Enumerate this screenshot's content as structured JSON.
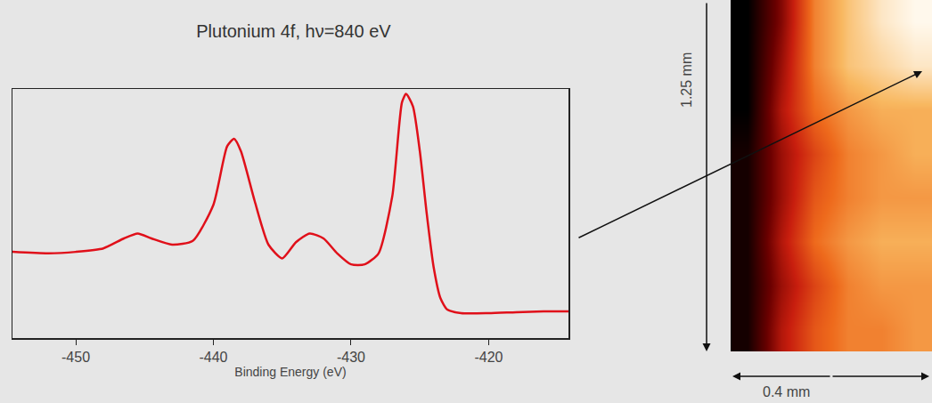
{
  "chart_data": [
    {
      "type": "line",
      "title": "Plutonium 4f, hν=840 eV",
      "x_label": "Binding Energy (eV)",
      "x": [
        -454.6,
        -452,
        -450,
        -448,
        -446.5,
        -445.5,
        -444.5,
        -443,
        -441.5,
        -440,
        -439,
        -438.5,
        -438,
        -437,
        -436,
        -435,
        -434,
        -433,
        -432,
        -431,
        -430,
        -429,
        -428,
        -427,
        -426.3,
        -426,
        -425.5,
        -425,
        -424.5,
        -424,
        -423.5,
        -423,
        -422,
        -420,
        -418,
        -416,
        -414.2
      ],
      "values": [
        34.6,
        34,
        34.6,
        36,
        40,
        42,
        40,
        37.5,
        39,
        53.5,
        77,
        80,
        75,
        55,
        37.5,
        32,
        38.5,
        42,
        40,
        34,
        29.6,
        29.6,
        34,
        57,
        94.6,
        98,
        93,
        75,
        50,
        28.6,
        16,
        11.4,
        10,
        10,
        10.4,
        10.7,
        10.7
      ],
      "color": "#e0101a",
      "xlim": [
        -454.6,
        -414.2
      ],
      "xticks": [
        -450,
        -440,
        -430,
        -420
      ],
      "ylim": [
        0,
        100
      ],
      "tick_labels": "x",
      "grid": false
    },
    {
      "type": "heatmap",
      "cells": [
        [
          0.0,
          0.3,
          0.7,
          0.85,
          0.95,
          1.0
        ],
        [
          0.0,
          0.35,
          0.7,
          0.85,
          0.9,
          0.95
        ],
        [
          0.0,
          0.4,
          0.65,
          0.75,
          0.8,
          0.8
        ],
        [
          0.05,
          0.35,
          0.55,
          0.7,
          0.75,
          0.8
        ],
        [
          0.05,
          0.35,
          0.6,
          0.7,
          0.75,
          0.75
        ],
        [
          0.05,
          0.4,
          0.65,
          0.75,
          0.8,
          0.8
        ],
        [
          0.05,
          0.35,
          0.55,
          0.7,
          0.75,
          0.75
        ],
        [
          0.05,
          0.4,
          0.6,
          0.7,
          0.7,
          0.75
        ]
      ],
      "zlim": [
        0,
        1
      ],
      "annotations": [
        "1.25 mm",
        "0.4 mm"
      ],
      "tick_labels": false
    }
  ]
}
